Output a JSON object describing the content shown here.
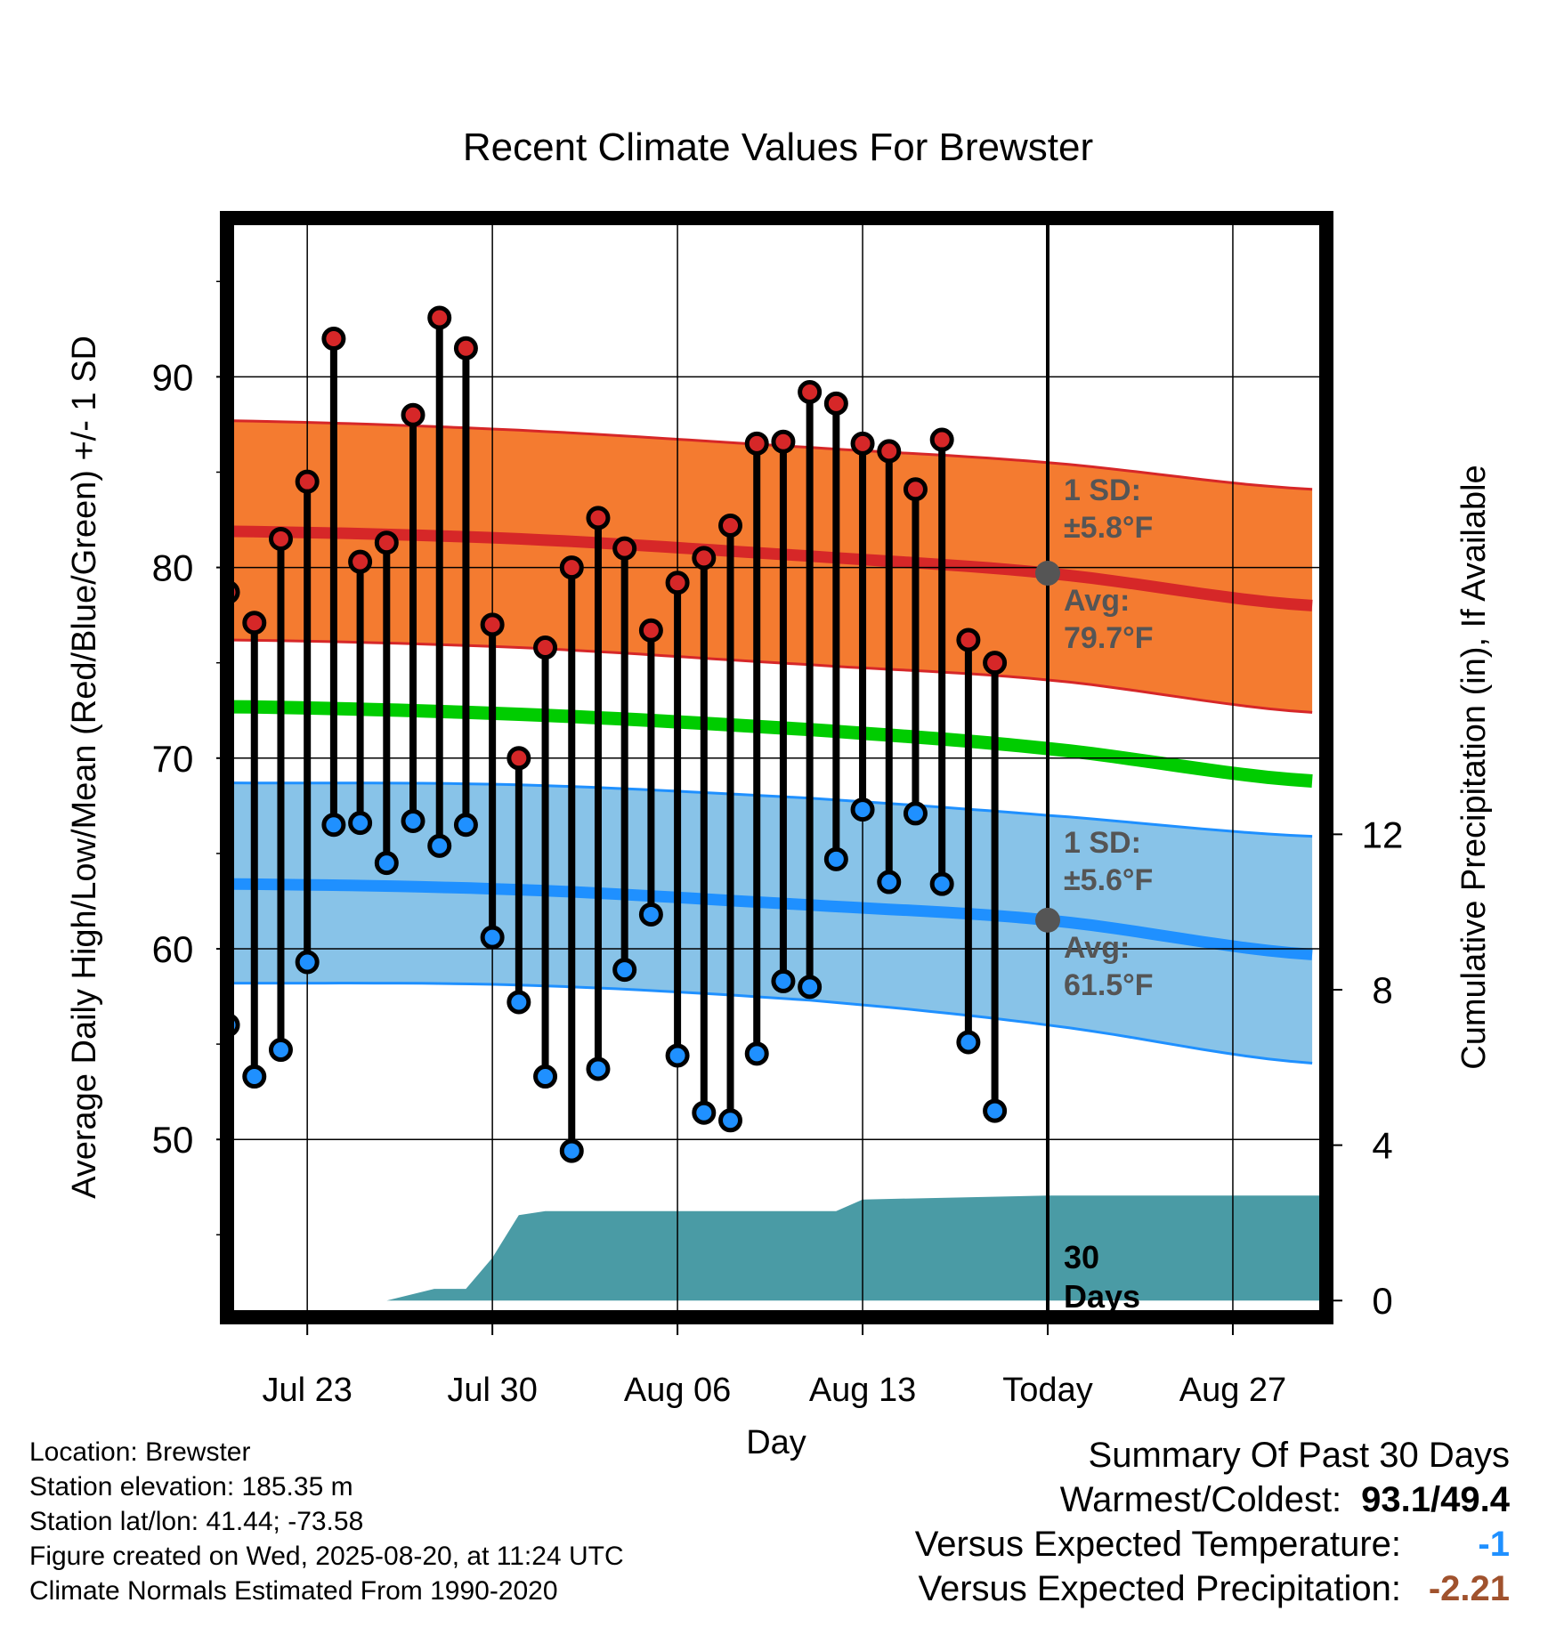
{
  "chart_data": {
    "type": "line",
    "title": "Recent Climate Values For Brewster",
    "xlabel": "Day",
    "ylabel": "Average Daily High/Low/Mean (Red/Blue/Green) +/- 1 SD",
    "y2label": "Cumulative Precipitation (in), If Available",
    "xlim": [
      -1.8,
      39.3
    ],
    "ylim": [
      41,
      98
    ],
    "y2lim": [
      -0.27,
      27.7
    ],
    "x_ticks": [
      {
        "x": 1,
        "label": "Jul 23"
      },
      {
        "x": 8,
        "label": "Jul 30"
      },
      {
        "x": 15,
        "label": "Aug 06"
      },
      {
        "x": 22,
        "label": "Aug 13"
      },
      {
        "x": 29,
        "label": "Today"
      },
      {
        "x": 36,
        "label": "Aug 27"
      }
    ],
    "y_ticks": [
      50,
      60,
      70,
      80,
      90
    ],
    "y2_ticks": [
      0,
      4,
      8,
      12
    ],
    "grid": true,
    "today_x": 29,
    "days": [
      -2,
      -1,
      0,
      1,
      2,
      3,
      4,
      5,
      6,
      7,
      8,
      9,
      10,
      11,
      12,
      13,
      14,
      15,
      16,
      17,
      18,
      19,
      20,
      21,
      22,
      23,
      24,
      25,
      26,
      27,
      28
    ],
    "series": [
      {
        "name": "High",
        "color": "#d62728",
        "values": [
          78.7,
          77.1,
          81.5,
          84.5,
          92.0,
          80.3,
          81.3,
          88.0,
          93.1,
          91.5,
          77.0,
          70.0,
          75.8,
          80.0,
          82.6,
          81.0,
          76.7,
          79.2,
          80.5,
          82.2,
          86.5,
          86.6,
          89.2,
          88.6,
          86.5,
          86.1,
          84.1,
          86.7,
          76.2,
          75.0,
          null
        ]
      },
      {
        "name": "Low",
        "color": "#1f90ff",
        "values": [
          56.0,
          53.3,
          54.7,
          59.3,
          66.5,
          66.6,
          64.5,
          66.7,
          65.4,
          66.5,
          60.6,
          57.2,
          53.3,
          49.4,
          53.7,
          58.9,
          61.8,
          54.4,
          51.4,
          51.0,
          54.5,
          58.3,
          58.0,
          64.7,
          67.3,
          63.5,
          67.1,
          63.4,
          55.1,
          51.5,
          null
        ]
      }
    ],
    "normals": {
      "days": [
        -2,
        9,
        20,
        29,
        39
      ],
      "high_mean": [
        81.9,
        81.5,
        80.6,
        79.7,
        78.0
      ],
      "high_upper": [
        87.7,
        87.2,
        86.3,
        85.5,
        84.1
      ],
      "high_lower": [
        76.2,
        75.8,
        74.9,
        74.1,
        72.4
      ],
      "mean": [
        72.7,
        72.3,
        71.5,
        70.5,
        68.8
      ],
      "low_mean": [
        63.4,
        63.1,
        62.3,
        61.5,
        59.7
      ],
      "low_upper": [
        68.7,
        68.6,
        67.9,
        67.0,
        65.9
      ],
      "low_lower": [
        58.2,
        58.1,
        57.3,
        56.0,
        54.0
      ],
      "high_sd_label": "1 SD:",
      "high_sd_value": "±5.8°F",
      "high_avg_label": "Avg:",
      "high_avg_value": "79.7°F",
      "low_sd_label": "1 SD:",
      "low_sd_value": "±5.6°F",
      "low_avg_label": "Avg:",
      "low_avg_value": "61.5°F",
      "high_avg_at_today": 79.7,
      "low_avg_at_today": 61.5
    },
    "precipitation": {
      "name": "Cumulative Precipitation",
      "color": "#4a9ba5",
      "days": [
        -1.8,
        4,
        5.8,
        7,
        8,
        9,
        10,
        20,
        21,
        22,
        29,
        39.3
      ],
      "values": [
        0,
        0,
        0.3,
        0.3,
        1.1,
        2.2,
        2.3,
        2.3,
        2.3,
        2.6,
        2.7,
        2.7
      ]
    },
    "period_label_line1": "30",
    "period_label_line2": "Days",
    "colors": {
      "high_band": "#f47b30",
      "high_line": "#d62728",
      "mean_line": "#00cc00",
      "low_band": "#88c3e8",
      "low_line": "#1f90ff",
      "precip": "#4a9ba5",
      "marker_today": "#555555"
    }
  },
  "footer": {
    "location": "Location: Brewster",
    "elevation": "Station elevation: 185.35 m",
    "latlon": "Station lat/lon: 41.44; -73.58",
    "created": "Figure created on Wed, 2025-08-20, at 11:24 UTC",
    "normals": "Climate Normals Estimated From 1990-2020"
  },
  "summary": {
    "title": "Summary Of Past 30 Days",
    "warm_cold_label": "Warmest/Coldest:",
    "warm_cold_value": "93.1/49.4",
    "temp_label": "Versus Expected Temperature:",
    "temp_value": "-1",
    "temp_color": "#1f90ff",
    "precip_label": "Versus Expected Precipitation:",
    "precip_value": "-2.21",
    "precip_color": "#a0522d"
  }
}
